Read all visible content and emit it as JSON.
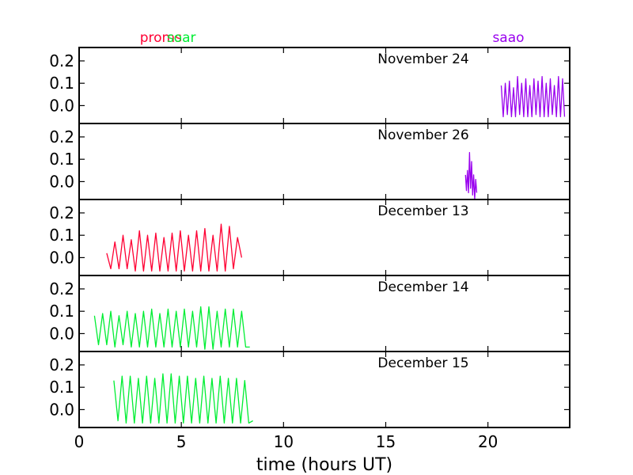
{
  "chart_data": {
    "type": "line",
    "title": "",
    "xlabel": "time (hours UT)",
    "ylabel": "",
    "xlim": [
      0,
      24
    ],
    "ylim": [
      -0.08,
      0.26
    ],
    "x_ticks": [
      0,
      5,
      10,
      15,
      20
    ],
    "x_tick_labels": [
      "0",
      "5",
      "10",
      "15",
      "20"
    ],
    "y_ticks": [
      0.0,
      0.1,
      0.2
    ],
    "y_tick_labels": [
      "0.0",
      "0.1",
      "0.2"
    ],
    "grid": false,
    "observatories": [
      {
        "name": "proms",
        "color": "#ff0033",
        "x": 4.0
      },
      {
        "name": "soar",
        "color": "#00ee33",
        "x": 5.0
      },
      {
        "name": "saao",
        "color": "#9900ee",
        "x": 21.0
      }
    ],
    "panels": [
      {
        "label": "November 24",
        "series": [
          {
            "observatory": "saao",
            "color": "#9900ee",
            "x": [
              20.65,
              20.75,
              20.85,
              20.95,
              21.05,
              21.15,
              21.25,
              21.35,
              21.45,
              21.55,
              21.65,
              21.75,
              21.85,
              21.95,
              22.05,
              22.15,
              22.25,
              22.35,
              22.45,
              22.55,
              22.65,
              22.75,
              22.85,
              22.95,
              23.05,
              23.15,
              23.25,
              23.35,
              23.45,
              23.55,
              23.65,
              23.75
            ],
            "y": [
              0.09,
              -0.05,
              0.1,
              -0.04,
              0.11,
              -0.05,
              0.08,
              -0.05,
              0.13,
              -0.04,
              0.1,
              -0.05,
              0.12,
              -0.05,
              0.09,
              -0.05,
              0.12,
              -0.04,
              0.11,
              -0.05,
              0.13,
              -0.05,
              0.1,
              -0.05,
              0.12,
              -0.04,
              0.09,
              -0.05,
              0.13,
              -0.05,
              0.12,
              -0.05
            ]
          }
        ]
      },
      {
        "label": "November 26",
        "series": [
          {
            "observatory": "saao",
            "color": "#9900ee",
            "x": [
              18.9,
              18.95,
              19.0,
              19.05,
              19.1,
              19.15,
              19.2,
              19.25,
              19.3,
              19.35,
              19.4,
              19.45
            ],
            "y": [
              0.03,
              -0.04,
              0.05,
              -0.05,
              0.13,
              -0.03,
              0.09,
              -0.06,
              0.03,
              -0.08,
              0.01,
              -0.05
            ]
          }
        ]
      },
      {
        "label": "December 13",
        "series": [
          {
            "observatory": "proms",
            "color": "#ff0033",
            "x": [
              1.35,
              1.55,
              1.75,
              1.95,
              2.15,
              2.35,
              2.55,
              2.75,
              2.95,
              3.15,
              3.35,
              3.55,
              3.75,
              3.95,
              4.15,
              4.35,
              4.55,
              4.75,
              4.95,
              5.15,
              5.35,
              5.55,
              5.75,
              5.95,
              6.15,
              6.35,
              6.55,
              6.75,
              6.95,
              7.15,
              7.35,
              7.55,
              7.75,
              7.95
            ],
            "y": [
              0.02,
              -0.05,
              0.07,
              -0.05,
              0.1,
              -0.05,
              0.08,
              -0.06,
              0.12,
              -0.06,
              0.1,
              -0.06,
              0.11,
              -0.06,
              0.09,
              -0.06,
              0.11,
              -0.06,
              0.12,
              -0.06,
              0.1,
              -0.06,
              0.12,
              -0.06,
              0.13,
              -0.06,
              0.1,
              -0.06,
              0.15,
              -0.06,
              0.14,
              -0.05,
              0.09,
              0.0
            ]
          }
        ]
      },
      {
        "label": "December 14",
        "series": [
          {
            "observatory": "soar",
            "color": "#00ee33",
            "x": [
              0.75,
              0.95,
              1.15,
              1.35,
              1.55,
              1.75,
              1.95,
              2.15,
              2.35,
              2.55,
              2.75,
              2.95,
              3.15,
              3.35,
              3.55,
              3.75,
              3.95,
              4.15,
              4.35,
              4.55,
              4.75,
              4.95,
              5.15,
              5.35,
              5.55,
              5.75,
              5.95,
              6.15,
              6.35,
              6.55,
              6.75,
              6.95,
              7.15,
              7.35,
              7.55,
              7.75,
              7.95,
              8.15,
              8.35
            ],
            "y": [
              0.08,
              -0.05,
              0.09,
              -0.05,
              0.1,
              -0.06,
              0.08,
              -0.05,
              0.1,
              -0.06,
              0.09,
              -0.06,
              0.1,
              -0.06,
              0.11,
              -0.06,
              0.09,
              -0.06,
              0.11,
              -0.06,
              0.1,
              -0.06,
              0.11,
              -0.06,
              0.1,
              -0.06,
              0.12,
              -0.07,
              0.12,
              -0.07,
              0.1,
              -0.06,
              0.11,
              -0.06,
              0.11,
              -0.06,
              0.1,
              -0.06,
              -0.06
            ]
          }
        ]
      },
      {
        "label": "December 15",
        "series": [
          {
            "observatory": "soar",
            "color": "#00ee33",
            "x": [
              1.7,
              1.9,
              2.1,
              2.3,
              2.5,
              2.7,
              2.9,
              3.1,
              3.3,
              3.5,
              3.7,
              3.9,
              4.1,
              4.3,
              4.5,
              4.7,
              4.9,
              5.1,
              5.3,
              5.5,
              5.7,
              5.9,
              6.1,
              6.3,
              6.5,
              6.7,
              6.9,
              7.1,
              7.3,
              7.5,
              7.7,
              7.9,
              8.1,
              8.3,
              8.5
            ],
            "y": [
              0.13,
              -0.05,
              0.15,
              -0.06,
              0.15,
              -0.06,
              0.14,
              -0.06,
              0.15,
              -0.06,
              0.14,
              -0.06,
              0.16,
              -0.06,
              0.16,
              -0.06,
              0.15,
              -0.06,
              0.15,
              -0.06,
              0.14,
              -0.06,
              0.15,
              -0.06,
              0.14,
              -0.06,
              0.15,
              -0.06,
              0.14,
              -0.06,
              0.14,
              -0.06,
              0.13,
              -0.06,
              -0.05
            ]
          }
        ]
      }
    ]
  }
}
